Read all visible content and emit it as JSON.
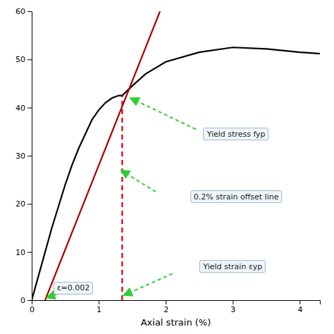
{
  "chart_data": {
    "type": "line",
    "xlabel": "Axial strain (%)",
    "xlim": [
      0,
      4.3
    ],
    "ylim": [
      0,
      60
    ],
    "xticks": [
      0,
      1,
      2,
      3,
      4
    ],
    "yticks": [
      0,
      10,
      20,
      30,
      40,
      50,
      60
    ],
    "grid": false,
    "series": [
      {
        "color": "#000000",
        "line_style": "solid",
        "x": [
          0,
          0.05,
          0.1,
          0.2,
          0.3,
          0.4,
          0.5,
          0.6,
          0.7,
          0.8,
          0.9,
          1.0,
          1.1,
          1.2,
          1.3,
          1.35,
          1.5,
          1.7,
          2.0,
          2.5,
          3.0,
          3.5,
          4.0,
          4.3
        ],
        "values": [
          0,
          2.5,
          5,
          10,
          15,
          19.5,
          24,
          28,
          31.5,
          34.5,
          37.5,
          39.5,
          41,
          42,
          42.5,
          42.5,
          44.5,
          47,
          49.5,
          51.5,
          52.5,
          52.2,
          51.5,
          51.2
        ]
      },
      {
        "color": "#AA0000",
        "line_style": "solid",
        "x": [
          0.2,
          1.9142857142857144
        ],
        "values": [
          0,
          60
        ]
      },
      {
        "color": "#CC0000",
        "line_style": "dashed",
        "x": [
          1.35,
          1.35
        ],
        "values": [
          0,
          42.5
        ]
      }
    ],
    "annotations": [
      {
        "text": "Yield stress fyp",
        "x": 3.05,
        "y": 34.5,
        "arrow_from": [
          2.45,
          35.5
        ],
        "arrow_to": [
          1.47,
          42.0
        ],
        "color": "#33CC33"
      },
      {
        "text": "0.2% strain offset line",
        "x": 3.05,
        "y": 21.5,
        "arrow_from": [
          1.85,
          22.5
        ],
        "arrow_to": [
          1.33,
          27.0
        ],
        "color": "#33CC33"
      },
      {
        "text": "Yield strain εyp",
        "x": 3.0,
        "y": 7.0,
        "arrow_from": [
          2.1,
          5.5
        ],
        "arrow_to": [
          1.37,
          1.0
        ],
        "color": "#33CC33"
      },
      {
        "text": "ε=0.002",
        "x": 0.62,
        "y": 2.5,
        "arrow_from": [
          0.55,
          2.0
        ],
        "arrow_to": [
          0.22,
          0.5
        ],
        "color": "#33CC33"
      }
    ]
  }
}
